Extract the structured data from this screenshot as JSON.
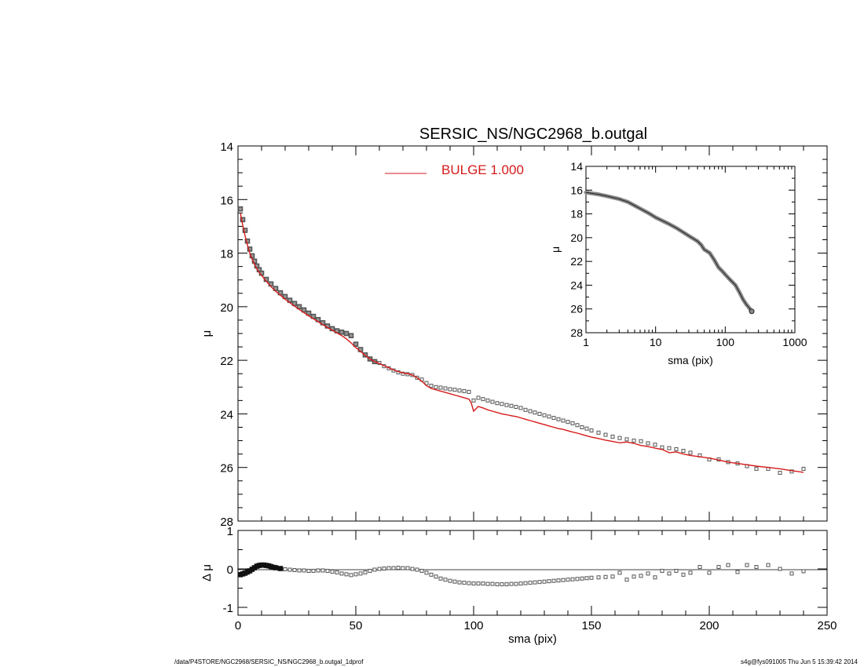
{
  "colors": {
    "model": "#d61a1a",
    "data": "#555555",
    "axis": "#000000"
  },
  "footer": {
    "left": "/data/P4STORE/NGC2968/SERSIC_NS/NGC2968_b.outgal_1dprof",
    "right": "s4g@fys091005  Thu Jun  5 15:39:42 2014"
  },
  "chart_data": [
    {
      "id": "main",
      "type": "scatter",
      "title": "SERSIC_NS/NGC2968_b.outgal",
      "ylabel": "μ",
      "xlim": [
        0,
        250
      ],
      "ylim": [
        28,
        14
      ],
      "y_inverted": true,
      "xticks": [
        "0",
        "50",
        "100",
        "150",
        "200",
        "250"
      ],
      "yticks": [
        "14",
        "16",
        "18",
        "20",
        "22",
        "24",
        "26",
        "28"
      ],
      "legend": {
        "placement": "top-center",
        "entries": [
          {
            "label": "BULGE  1.000",
            "color": "#d61a1a"
          }
        ]
      },
      "series": [
        {
          "kind": "data",
          "x": [
            1,
            2,
            3,
            4,
            5,
            6,
            7,
            8,
            9,
            10,
            12,
            14,
            16,
            18,
            20,
            22,
            24,
            26,
            28,
            30,
            32,
            34,
            36,
            38,
            40,
            42,
            44,
            46,
            48,
            50,
            52,
            54,
            56,
            58,
            60,
            62,
            64,
            66,
            68,
            70,
            72,
            74,
            76,
            78,
            80,
            82,
            84,
            86,
            88,
            90,
            92,
            94,
            96,
            98,
            100,
            102,
            104,
            106,
            108,
            110,
            112,
            114,
            116,
            118,
            120,
            122,
            124,
            126,
            128,
            130,
            132,
            134,
            136,
            138,
            140,
            142,
            144,
            146,
            148,
            150,
            153,
            156,
            159,
            162,
            165,
            168,
            171,
            174,
            177,
            180,
            183,
            186,
            189,
            192,
            196,
            200,
            204,
            208,
            212,
            216,
            220,
            225,
            230,
            235,
            240
          ],
          "y": [
            16.35,
            16.75,
            17.15,
            17.55,
            17.85,
            18.1,
            18.3,
            18.48,
            18.62,
            18.75,
            18.98,
            19.15,
            19.32,
            19.48,
            19.62,
            19.76,
            19.88,
            20.0,
            20.12,
            20.24,
            20.36,
            20.48,
            20.6,
            20.72,
            20.82,
            20.9,
            20.95,
            21.0,
            21.08,
            21.4,
            21.6,
            21.8,
            21.95,
            22.05,
            22.1,
            22.22,
            22.3,
            22.38,
            22.45,
            22.5,
            22.52,
            22.55,
            22.65,
            22.72,
            22.85,
            22.95,
            23.0,
            23.02,
            23.05,
            23.08,
            23.1,
            23.13,
            23.15,
            23.18,
            23.5,
            23.4,
            23.45,
            23.5,
            23.55,
            23.6,
            23.63,
            23.67,
            23.7,
            23.74,
            23.78,
            23.85,
            23.9,
            23.95,
            24.0,
            24.05,
            24.1,
            24.15,
            24.2,
            24.25,
            24.3,
            24.35,
            24.42,
            24.5,
            24.55,
            24.62,
            24.7,
            24.78,
            24.85,
            24.9,
            24.95,
            25.0,
            25.02,
            25.1,
            25.15,
            25.25,
            25.28,
            25.32,
            25.38,
            25.45,
            25.55,
            25.7,
            25.7,
            25.8,
            25.85,
            25.95,
            26.05,
            26.05,
            26.2,
            26.15,
            26.05
          ]
        },
        {
          "kind": "model",
          "name": "BULGE  1.000",
          "x": [
            1,
            2,
            3,
            4,
            5,
            6,
            7,
            8,
            9,
            10,
            12,
            14,
            16,
            18,
            20,
            22,
            24,
            26,
            28,
            30,
            32,
            34,
            36,
            38,
            40,
            42,
            44,
            46,
            48,
            50,
            52,
            54,
            56,
            58,
            60,
            62,
            64,
            66,
            68,
            70,
            72,
            74,
            76,
            78,
            80,
            82,
            84,
            86,
            88,
            90,
            92,
            94,
            96,
            98,
            99,
            100,
            102,
            104,
            106,
            108,
            110,
            112,
            114,
            116,
            118,
            120,
            122,
            124,
            126,
            128,
            130,
            132,
            134,
            136,
            138,
            140,
            142,
            144,
            146,
            148,
            150,
            153,
            156,
            159,
            162,
            165,
            168,
            171,
            174,
            177,
            180,
            183,
            186,
            189,
            192,
            196,
            200,
            204,
            208,
            212,
            216,
            220,
            225,
            230,
            235,
            240
          ],
          "y": [
            16.5,
            16.95,
            17.35,
            17.7,
            18.0,
            18.22,
            18.42,
            18.58,
            18.72,
            18.83,
            19.05,
            19.25,
            19.42,
            19.57,
            19.72,
            19.85,
            19.98,
            20.1,
            20.22,
            20.34,
            20.45,
            20.56,
            20.67,
            20.78,
            20.88,
            20.98,
            21.08,
            21.2,
            21.35,
            21.52,
            21.67,
            21.82,
            21.95,
            22.05,
            22.12,
            22.2,
            22.28,
            22.36,
            22.42,
            22.47,
            22.5,
            22.55,
            22.65,
            22.78,
            22.95,
            23.05,
            23.1,
            23.15,
            23.2,
            23.25,
            23.3,
            23.35,
            23.4,
            23.45,
            23.6,
            23.9,
            23.72,
            23.78,
            23.85,
            23.9,
            23.95,
            24.0,
            24.03,
            24.07,
            24.1,
            24.15,
            24.2,
            24.25,
            24.3,
            24.35,
            24.4,
            24.45,
            24.5,
            24.55,
            24.58,
            24.63,
            24.68,
            24.72,
            24.77,
            24.82,
            24.87,
            24.92,
            24.98,
            25.03,
            25.08,
            25.05,
            25.1,
            25.18,
            25.22,
            25.28,
            25.33,
            25.45,
            25.42,
            25.5,
            25.55,
            25.6,
            25.65,
            25.72,
            25.8,
            25.85,
            25.9,
            25.95,
            26.0,
            26.05,
            26.12,
            26.18
          ]
        }
      ]
    },
    {
      "id": "inset",
      "type": "line",
      "xlabel": "sma (pix)",
      "ylabel": "μ",
      "x_scale": "log",
      "xlim": [
        1,
        1000
      ],
      "ylim": [
        28,
        14
      ],
      "y_inverted": true,
      "xticks": [
        "1",
        "10",
        "100",
        "1000"
      ],
      "yticks": [
        "14",
        "16",
        "18",
        "20",
        "22",
        "24",
        "26",
        "28"
      ],
      "series": [
        {
          "kind": "data",
          "x": [
            1,
            1.5,
            2,
            3,
            4,
            5,
            6,
            8,
            10,
            15,
            20,
            30,
            40,
            45,
            50,
            55,
            60,
            70,
            80,
            90,
            100,
            120,
            140,
            160,
            180,
            200,
            220,
            240
          ],
          "y": [
            16.2,
            16.35,
            16.5,
            16.75,
            17.0,
            17.3,
            17.55,
            17.95,
            18.3,
            18.8,
            19.2,
            19.85,
            20.3,
            20.6,
            21.0,
            21.15,
            21.3,
            21.9,
            22.5,
            22.8,
            23.1,
            23.6,
            24.0,
            24.6,
            25.2,
            25.6,
            25.9,
            26.2
          ]
        }
      ]
    },
    {
      "id": "residual",
      "type": "scatter",
      "xlabel": "sma (pix)",
      "ylabel": "Δ μ",
      "xlim": [
        0,
        250
      ],
      "ylim": [
        -1,
        1
      ],
      "xticks": [
        "0",
        "50",
        "100",
        "150",
        "200",
        "250"
      ],
      "yticks": [
        "1",
        "0",
        "-1"
      ],
      "reference_line": 0,
      "series": [
        {
          "kind": "data",
          "x": [
            1,
            2,
            3,
            4,
            5,
            6,
            7,
            8,
            9,
            10,
            11,
            12,
            13,
            14,
            15,
            16,
            18,
            20,
            22,
            24,
            26,
            28,
            30,
            32,
            34,
            36,
            38,
            40,
            42,
            44,
            46,
            48,
            50,
            52,
            54,
            56,
            58,
            60,
            62,
            64,
            66,
            68,
            70,
            72,
            74,
            76,
            78,
            80,
            82,
            84,
            86,
            88,
            90,
            92,
            94,
            96,
            98,
            100,
            102,
            104,
            106,
            108,
            110,
            112,
            114,
            116,
            118,
            120,
            122,
            124,
            126,
            128,
            130,
            132,
            134,
            136,
            138,
            140,
            142,
            144,
            146,
            148,
            150,
            153,
            156,
            159,
            162,
            165,
            168,
            171,
            174,
            177,
            180,
            183,
            186,
            189,
            192,
            196,
            200,
            204,
            208,
            212,
            216,
            220,
            225,
            230,
            235,
            240
          ],
          "y": [
            -0.15,
            -0.13,
            -0.11,
            -0.08,
            -0.05,
            -0.01,
            0.03,
            0.07,
            0.09,
            0.1,
            0.1,
            0.09,
            0.08,
            0.06,
            0.04,
            0.03,
            0.01,
            -0.01,
            -0.02,
            -0.03,
            -0.04,
            -0.04,
            -0.05,
            -0.05,
            -0.04,
            -0.04,
            -0.05,
            -0.07,
            -0.09,
            -0.12,
            -0.14,
            -0.16,
            -0.14,
            -0.12,
            -0.09,
            -0.05,
            -0.02,
            0.0,
            0.01,
            0.02,
            0.02,
            0.03,
            0.02,
            0.02,
            0.0,
            -0.02,
            -0.05,
            -0.1,
            -0.15,
            -0.2,
            -0.25,
            -0.28,
            -0.31,
            -0.33,
            -0.35,
            -0.36,
            -0.37,
            -0.38,
            -0.38,
            -0.38,
            -0.39,
            -0.39,
            -0.4,
            -0.4,
            -0.4,
            -0.39,
            -0.39,
            -0.38,
            -0.37,
            -0.36,
            -0.35,
            -0.34,
            -0.33,
            -0.32,
            -0.31,
            -0.3,
            -0.29,
            -0.28,
            -0.27,
            -0.26,
            -0.25,
            -0.24,
            -0.23,
            -0.22,
            -0.21,
            -0.2,
            -0.1,
            -0.28,
            -0.2,
            -0.18,
            -0.12,
            -0.22,
            -0.05,
            -0.12,
            -0.05,
            -0.15,
            -0.1,
            0.05,
            -0.1,
            0.05,
            0.1,
            -0.08,
            0.1,
            0.05,
            0.1,
            0.0,
            -0.12,
            -0.06
          ]
        }
      ]
    }
  ]
}
